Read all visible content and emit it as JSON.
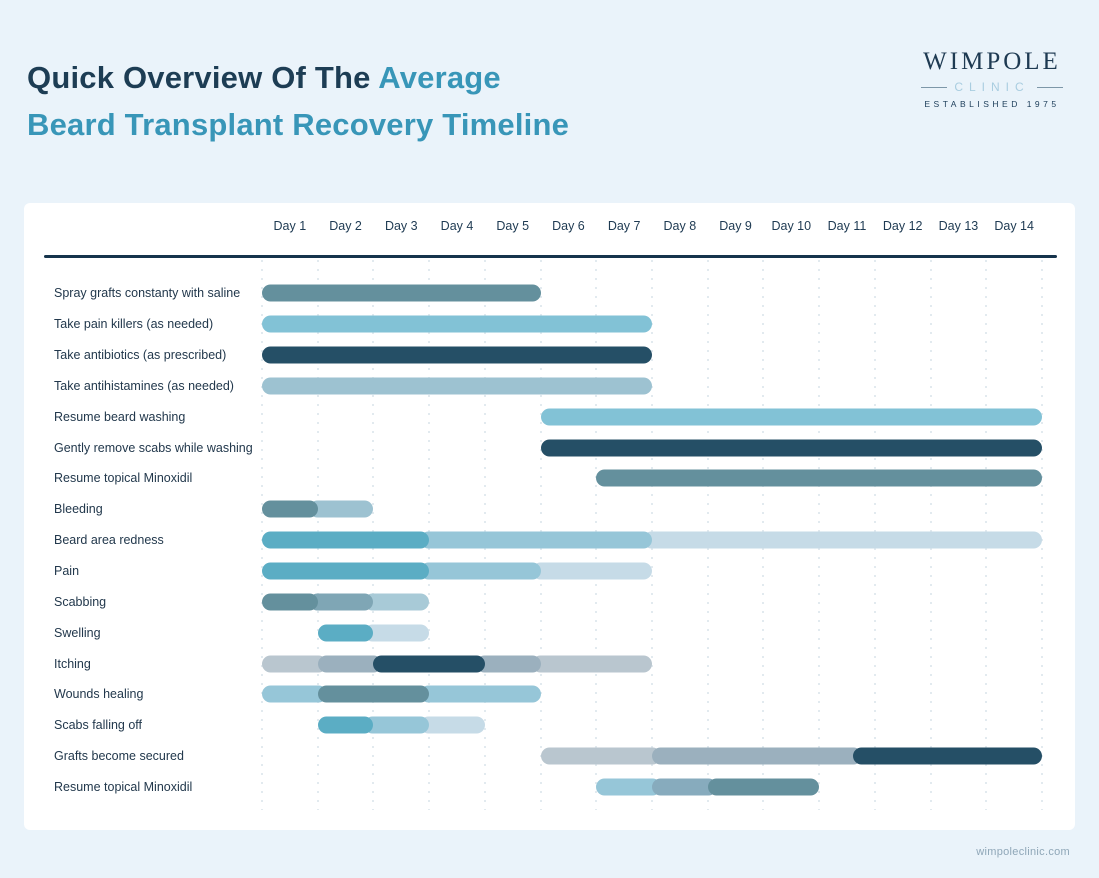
{
  "page": {
    "background": "#eaf3fa"
  },
  "header": {
    "title_dark": "Quick Overview Of The ",
    "title_accent_1": "Average",
    "title_accent_2": "Beard Transplant Recovery Timeline"
  },
  "logo": {
    "wordmark": "WIMPOLE",
    "subtitle": "CLINIC",
    "established": "ESTABLISHED 1975"
  },
  "footer": {
    "website": "wimpoleclinic.com"
  },
  "chart_data": {
    "type": "bar",
    "variant": "gantt-timeline",
    "title": "Quick Overview Of The Average Beard Transplant Recovery Timeline",
    "x_axis": {
      "labels": [
        "Day 1",
        "Day 2",
        "Day 3",
        "Day 4",
        "Day 5",
        "Day 6",
        "Day 7",
        "Day 8",
        "Day 9",
        "Day 10",
        "Day 11",
        "Day 12",
        "Day 13",
        "Day 14"
      ],
      "range": [
        0,
        14
      ],
      "grid": "dotted-vertical"
    },
    "palette": {
      "navy": "#254f66",
      "slate": "#64909d",
      "sky": "#82c2d6",
      "blueGray": "#9dc2d1",
      "teal": "#5badc4",
      "lightSky": "#96c6d8",
      "pale": "#c6dbe7",
      "grayLight": "#b9c6cf",
      "grayMid": "#9bb0be",
      "slateLight": "#7fa6b5",
      "steel": "#87abbd",
      "paleBlue": "#a8cad7"
    },
    "rows": [
      {
        "label": "Spray grafts constanty with saline",
        "segments": [
          {
            "from": 0,
            "to": 5,
            "color": "slate",
            "z": 1
          }
        ]
      },
      {
        "label": "Take pain killers (as needed)",
        "segments": [
          {
            "from": 0,
            "to": 7,
            "color": "sky",
            "z": 1
          }
        ]
      },
      {
        "label": "Take antibiotics (as prescribed)",
        "segments": [
          {
            "from": 0,
            "to": 7,
            "color": "navy",
            "z": 1
          }
        ]
      },
      {
        "label": "Take antihistamines (as needed)",
        "segments": [
          {
            "from": 0,
            "to": 7,
            "color": "blueGray",
            "z": 1
          }
        ]
      },
      {
        "label": "Resume beard washing",
        "segments": [
          {
            "from": 5,
            "to": 14,
            "color": "sky",
            "z": 1
          }
        ]
      },
      {
        "label": "Gently remove scabs while washing",
        "segments": [
          {
            "from": 5,
            "to": 14,
            "color": "navy",
            "z": 1
          }
        ]
      },
      {
        "label": "Resume topical Minoxidil",
        "segments": [
          {
            "from": 6,
            "to": 14,
            "color": "slate",
            "z": 1
          }
        ]
      },
      {
        "label": "Bleeding",
        "segments": [
          {
            "from": 0,
            "to": 1,
            "color": "slate",
            "z": 2
          },
          {
            "from": 1,
            "to": 2,
            "color": "blueGray",
            "z": 1
          }
        ]
      },
      {
        "label": "Beard area redness",
        "segments": [
          {
            "from": 0,
            "to": 3,
            "color": "teal",
            "z": 3
          },
          {
            "from": 3,
            "to": 7,
            "color": "lightSky",
            "z": 2
          },
          {
            "from": 7,
            "to": 14,
            "color": "pale",
            "z": 1
          }
        ]
      },
      {
        "label": "Pain",
        "segments": [
          {
            "from": 0,
            "to": 3,
            "color": "teal",
            "z": 3
          },
          {
            "from": 3,
            "to": 5,
            "color": "lightSky",
            "z": 2
          },
          {
            "from": 5,
            "to": 7,
            "color": "pale",
            "z": 1
          }
        ]
      },
      {
        "label": "Scabbing",
        "segments": [
          {
            "from": 0,
            "to": 1,
            "color": "slate",
            "z": 3
          },
          {
            "from": 1,
            "to": 2,
            "color": "slateLight",
            "z": 2
          },
          {
            "from": 2,
            "to": 3,
            "color": "paleBlue",
            "z": 1
          }
        ]
      },
      {
        "label": "Swelling",
        "segments": [
          {
            "from": 1,
            "to": 2,
            "color": "teal",
            "z": 2
          },
          {
            "from": 2,
            "to": 3,
            "color": "pale",
            "z": 1
          }
        ]
      },
      {
        "label": "Itching",
        "segments": [
          {
            "from": 0,
            "to": 1,
            "color": "grayLight",
            "z": 1
          },
          {
            "from": 1,
            "to": 2,
            "color": "grayMid",
            "z": 2
          },
          {
            "from": 2,
            "to": 4,
            "color": "navy",
            "z": 3
          },
          {
            "from": 4,
            "to": 5,
            "color": "grayMid",
            "z": 2
          },
          {
            "from": 5,
            "to": 7,
            "color": "grayLight",
            "z": 1
          }
        ]
      },
      {
        "label": "Wounds healing",
        "segments": [
          {
            "from": 0,
            "to": 1,
            "color": "lightSky",
            "z": 1
          },
          {
            "from": 1,
            "to": 3,
            "color": "slate",
            "z": 2
          },
          {
            "from": 3,
            "to": 5,
            "color": "lightSky",
            "z": 1
          }
        ]
      },
      {
        "label": "Scabs falling off",
        "segments": [
          {
            "from": 1,
            "to": 2,
            "color": "teal",
            "z": 3
          },
          {
            "from": 2,
            "to": 3,
            "color": "lightSky",
            "z": 2
          },
          {
            "from": 3,
            "to": 4,
            "color": "pale",
            "z": 1
          }
        ]
      },
      {
        "label": "Grafts become secured",
        "segments": [
          {
            "from": 5,
            "to": 7,
            "color": "grayLight",
            "z": 1
          },
          {
            "from": 7,
            "to": 10.6,
            "color": "grayMid",
            "z": 2
          },
          {
            "from": 10.6,
            "to": 14,
            "color": "navy",
            "z": 3
          }
        ]
      },
      {
        "label": "Resume topical Minoxidil",
        "segments": [
          {
            "from": 6,
            "to": 7,
            "color": "lightSky",
            "z": 1
          },
          {
            "from": 7,
            "to": 8,
            "color": "steel",
            "z": 2
          },
          {
            "from": 8,
            "to": 10,
            "color": "slate",
            "z": 3
          }
        ]
      }
    ]
  }
}
